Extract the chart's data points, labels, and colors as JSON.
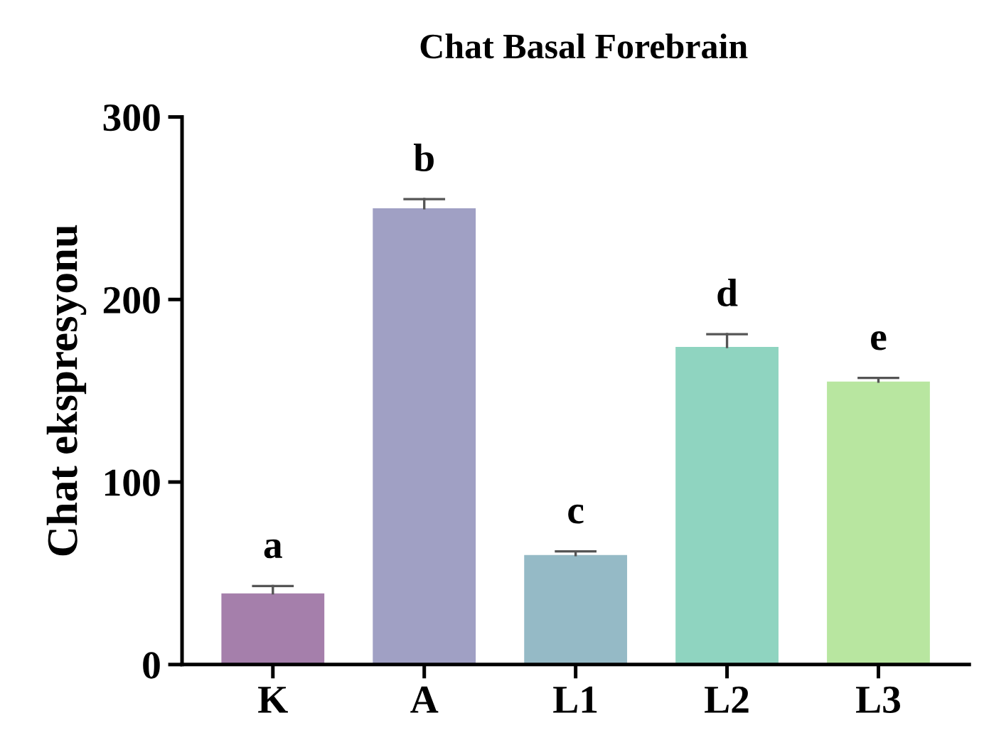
{
  "chart_data": {
    "type": "bar",
    "title": "Chat Basal Forebrain",
    "ylabel": "Chat ekspresyonu",
    "categories": [
      "K",
      "A",
      "L1",
      "L2",
      "L3"
    ],
    "values": [
      39,
      250,
      60,
      174,
      155
    ],
    "errors": [
      [
        39,
        43
      ],
      [
        250,
        255
      ],
      [
        60,
        62
      ],
      [
        174,
        181
      ],
      [
        155,
        157
      ]
    ],
    "colors": [
      "#a57fab",
      "#a0a0c4",
      "#95bac6",
      "#8fd4c0",
      "#b8e6a0"
    ],
    "ylim": [
      0,
      300
    ],
    "yticks": [
      0,
      100,
      200,
      300
    ],
    "grid": false,
    "annotations": [
      {
        "text": "a",
        "x": "K",
        "y": 43
      },
      {
        "text": "b",
        "x": "A",
        "y": 255
      },
      {
        "text": "c",
        "x": "L1",
        "y": 62
      },
      {
        "text": "d",
        "x": "L2",
        "y": 181
      },
      {
        "text": "e",
        "x": "L3",
        "y": 157
      }
    ]
  }
}
